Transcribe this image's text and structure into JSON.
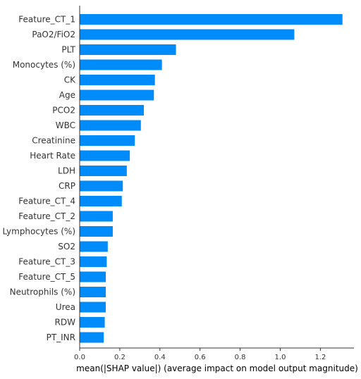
{
  "chart_data": {
    "type": "bar",
    "orientation": "horizontal",
    "title": "",
    "xlabel": "mean(|SHAP value|) (average impact on model output magnitude)",
    "ylabel": "",
    "xlim": [
      0,
      1.32
    ],
    "xticks": [
      "0.0",
      "0.2",
      "0.4",
      "0.6",
      "0.8",
      "1.0",
      "1.2"
    ],
    "bar_color": "#008bfb",
    "grid": false,
    "categories": [
      "Feature_CT_1",
      "PaO2/FiO2",
      "PLT",
      "Monocytes (%)",
      "CK",
      "Age",
      "PCO2",
      "WBC",
      "Creatinine",
      "Heart Rate",
      "LDH",
      "CRP",
      "Feature_CT_4",
      "Feature_CT_2",
      "Lymphocytes (%)",
      "SO2",
      "Feature_CT_3",
      "Feature_CT_5",
      "Neutrophils (%)",
      "Urea",
      "RDW",
      "PT_INR"
    ],
    "values": [
      1.31,
      1.07,
      0.48,
      0.41,
      0.375,
      0.37,
      0.32,
      0.305,
      0.275,
      0.25,
      0.235,
      0.215,
      0.21,
      0.165,
      0.165,
      0.14,
      0.135,
      0.13,
      0.13,
      0.13,
      0.125,
      0.12
    ]
  }
}
